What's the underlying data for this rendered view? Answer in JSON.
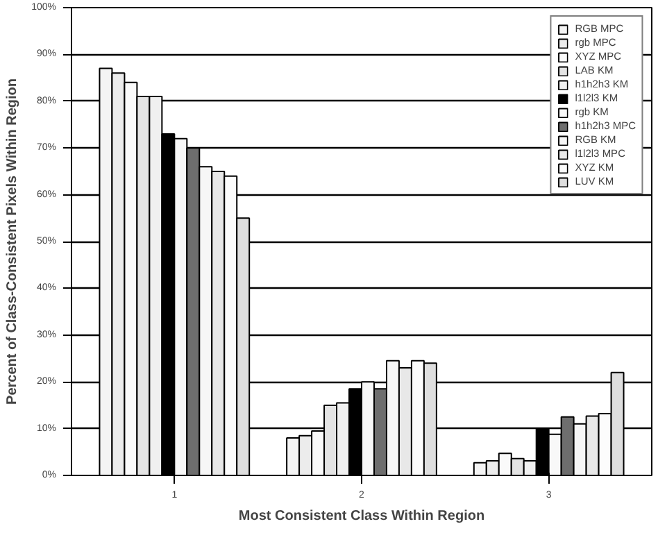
{
  "chart_data": {
    "type": "bar",
    "xlabel": "Most Consistent Class Within Region",
    "ylabel": "Percent of Class-Consistent Pixels Within Region",
    "categories": [
      "1",
      "2",
      "3"
    ],
    "series": [
      {
        "name": "RGB MPC",
        "color": "#f4f4f4",
        "values": [
          87,
          8,
          2.7
        ]
      },
      {
        "name": "rgb MPC",
        "color": "#ececec",
        "values": [
          86,
          8.5,
          3.1
        ]
      },
      {
        "name": "XYZ MPC",
        "color": "#fafafa",
        "values": [
          84,
          9.5,
          4.7
        ]
      },
      {
        "name": "LAB KM",
        "color": "#e4e4e4",
        "values": [
          81,
          15,
          3.6
        ]
      },
      {
        "name": "h1h2h3 KM",
        "color": "#f0f0f0",
        "values": [
          81,
          15.5,
          3.1
        ]
      },
      {
        "name": "l1l2l3 KM",
        "color": "#000000",
        "values": [
          73,
          18.5,
          10
        ]
      },
      {
        "name": "rgb KM",
        "color": "#f8f8f8",
        "values": [
          72,
          20,
          8.8
        ]
      },
      {
        "name": "h1h2h3 MPC",
        "color": "#6e6e6e",
        "values": [
          70,
          18.5,
          12.5
        ]
      },
      {
        "name": "RGB KM",
        "color": "#f6f6f6",
        "values": [
          66,
          24.5,
          11
        ]
      },
      {
        "name": "l1l2l3 MPC",
        "color": "#e8e8e8",
        "values": [
          65,
          23,
          12.7
        ]
      },
      {
        "name": "XYZ KM",
        "color": "#fcfcfc",
        "values": [
          64,
          24.5,
          13.2
        ]
      },
      {
        "name": "LUV KM",
        "color": "#dedede",
        "values": [
          55,
          24,
          22
        ]
      }
    ],
    "ylim": [
      0,
      100
    ],
    "yticks": [
      {
        "value": 0,
        "label": "0%"
      },
      {
        "value": 10,
        "label": "10%"
      },
      {
        "value": 20,
        "label": "20%"
      },
      {
        "value": 30,
        "label": "30%"
      },
      {
        "value": 40,
        "label": "40%"
      },
      {
        "value": 50,
        "label": "50%"
      },
      {
        "value": 60,
        "label": "60%"
      },
      {
        "value": 70,
        "label": "70%"
      },
      {
        "value": 80,
        "label": "80%"
      },
      {
        "value": 90,
        "label": "90%"
      },
      {
        "value": 100,
        "label": "100%"
      }
    ],
    "grid": "y",
    "legend": "top right"
  }
}
